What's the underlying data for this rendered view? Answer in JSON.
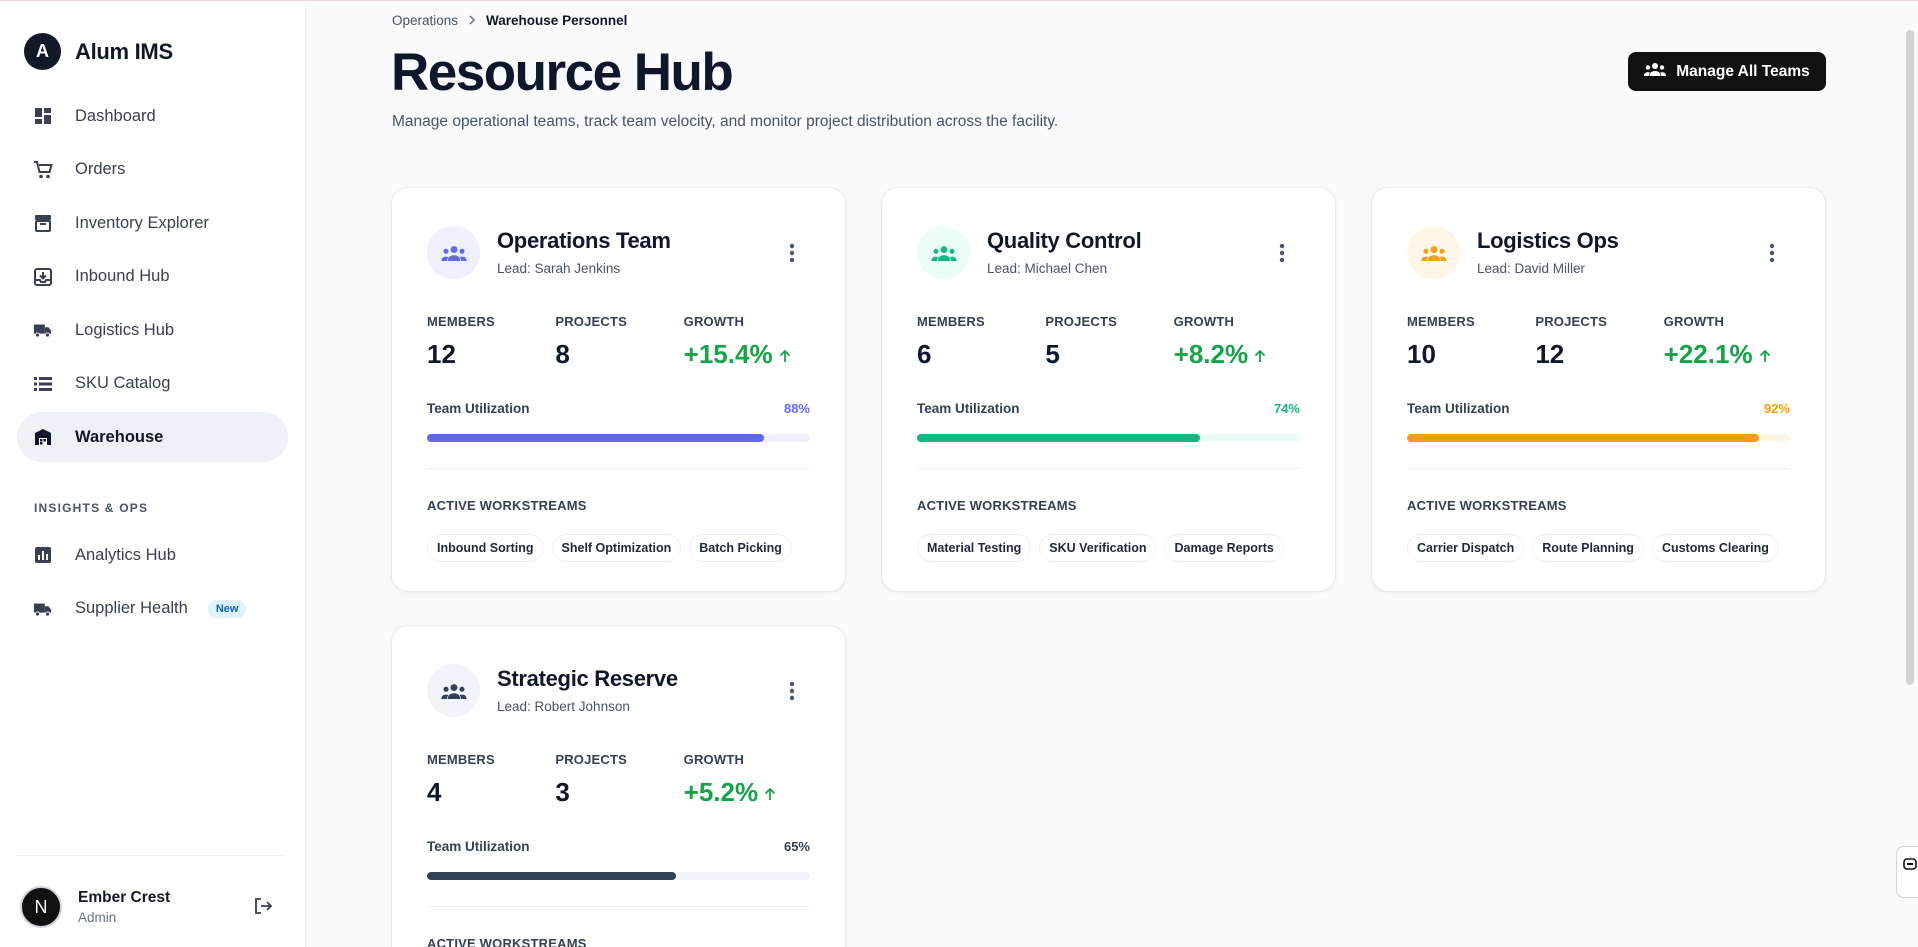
{
  "app": {
    "name": "Alum IMS",
    "logo_letter": "A"
  },
  "sidebar": {
    "items": [
      {
        "label": "Dashboard",
        "icon": "dashboard-icon"
      },
      {
        "label": "Orders",
        "icon": "cart-icon"
      },
      {
        "label": "Inventory Explorer",
        "icon": "archive-icon"
      },
      {
        "label": "Inbound Hub",
        "icon": "inbox-icon"
      },
      {
        "label": "Logistics Hub",
        "icon": "truck-icon"
      },
      {
        "label": "SKU Catalog",
        "icon": "list-icon"
      },
      {
        "label": "Warehouse",
        "icon": "warehouse-icon",
        "active": true
      }
    ],
    "section_label": "INSIGHTS & OPS",
    "insights": [
      {
        "label": "Analytics Hub",
        "icon": "chart-icon"
      },
      {
        "label": "Supplier Health",
        "icon": "truck-icon",
        "badge": "New"
      }
    ],
    "user": {
      "initial": "N",
      "name": "Ember Crest",
      "role": "Admin"
    }
  },
  "breadcrumb": {
    "parent": "Operations",
    "current": "Warehouse Personnel"
  },
  "page": {
    "title": "Resource Hub",
    "subtitle": "Manage operational teams, track team velocity, and monitor project distribution across the facility.",
    "manage_button": "Manage All Teams"
  },
  "labels": {
    "members": "MEMBERS",
    "projects": "PROJECTS",
    "growth": "GROWTH",
    "utilization": "Team Utilization",
    "workstreams": "ACTIVE WORKSTREAMS"
  },
  "teams": [
    {
      "name": "Operations Team",
      "lead": "Lead: Sarah Jenkins",
      "members": "12",
      "projects": "8",
      "growth": "+15.4%",
      "utilization": "88%",
      "utilization_value": 0.88,
      "accent": "#6366f1",
      "track": "#eef0fd",
      "icon_bg": "#eef0fd",
      "workstreams": [
        "Inbound Sorting",
        "Shelf Optimization",
        "Batch Picking"
      ]
    },
    {
      "name": "Quality Control",
      "lead": "Lead: Michael Chen",
      "members": "6",
      "projects": "5",
      "growth": "+8.2%",
      "utilization": "74%",
      "utilization_value": 0.74,
      "accent": "#10b981",
      "track": "#ecfdf5",
      "icon_bg": "#ecfdf5",
      "workstreams": [
        "Material Testing",
        "SKU Verification",
        "Damage Reports"
      ]
    },
    {
      "name": "Logistics Ops",
      "lead": "Lead: David Miller",
      "members": "10",
      "projects": "12",
      "growth": "+22.1%",
      "utilization": "92%",
      "utilization_value": 0.92,
      "accent": "#f59e0b",
      "track": "#fef7e8",
      "icon_bg": "#fef7e8",
      "workstreams": [
        "Carrier Dispatch",
        "Route Planning",
        "Customs Clearing"
      ]
    },
    {
      "name": "Strategic Reserve",
      "lead": "Lead: Robert Johnson",
      "members": "4",
      "projects": "3",
      "growth": "+5.2%",
      "utilization": "65%",
      "utilization_value": 0.65,
      "accent": "#334155",
      "track": "#f1f5f9",
      "icon_bg": "#f1f5f9",
      "workstreams": []
    }
  ]
}
